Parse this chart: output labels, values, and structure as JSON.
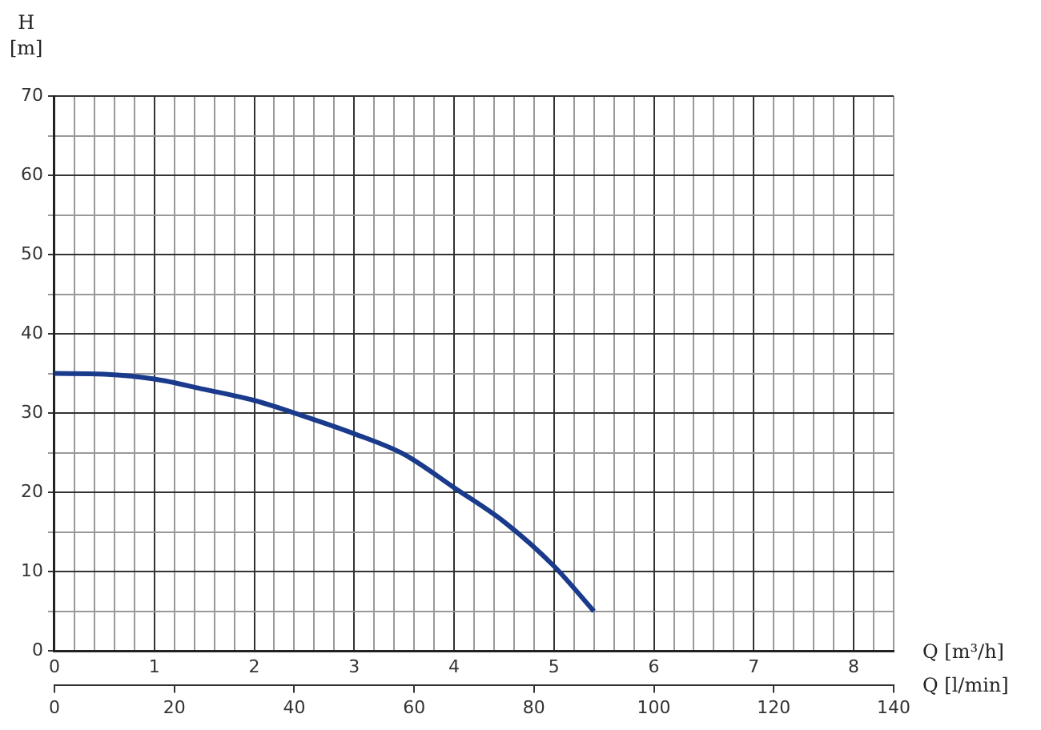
{
  "chart_data": {
    "type": "line",
    "xlabel": "Q [m³/h]",
    "x2label": "Q [l/min]",
    "ylabel": "H [m]",
    "xlim": [
      0,
      8.4
    ],
    "xticks": [
      0,
      {
        "value": 0.2,
        "label": null
      },
      {
        "value": 0.4,
        "label": null
      },
      {
        "value": 0.6,
        "label": null
      },
      {
        "value": 0.8,
        "label": null
      },
      1,
      {
        "value": 1.2,
        "label": null
      },
      {
        "value": 1.4,
        "label": null
      },
      {
        "value": 1.6,
        "label": null
      },
      {
        "value": 1.8,
        "label": null
      },
      2,
      {
        "value": 2.2,
        "label": null
      },
      {
        "value": 2.4,
        "label": null
      },
      {
        "value": 2.6,
        "label": null
      },
      {
        "value": 2.8,
        "label": null
      },
      3,
      {
        "value": 3.2,
        "label": null
      },
      {
        "value": 3.4,
        "label": null
      },
      {
        "value": 3.6,
        "label": null
      },
      {
        "value": 3.8,
        "label": null
      },
      4,
      {
        "value": 4.2,
        "label": null
      },
      {
        "value": 4.4,
        "label": null
      },
      {
        "value": 4.6,
        "label": null
      },
      {
        "value": 4.8,
        "label": null
      },
      5,
      {
        "value": 5.2,
        "label": null
      },
      {
        "value": 5.4,
        "label": null
      },
      {
        "value": 5.6,
        "label": null
      },
      {
        "value": 5.8,
        "label": null
      },
      6,
      {
        "value": 6.2,
        "label": null
      },
      {
        "value": 6.4,
        "label": null
      },
      {
        "value": 6.6,
        "label": null
      },
      {
        "value": 6.8,
        "label": null
      },
      7,
      {
        "value": 7.2,
        "label": null
      },
      {
        "value": 7.4,
        "label": null
      },
      {
        "value": 7.6,
        "label": null
      },
      {
        "value": 7.8,
        "label": null
      },
      8,
      {
        "value": 8.2,
        "label": null
      },
      {
        "value": 8.4,
        "label": null
      }
    ],
    "x2lim": [
      0,
      140
    ],
    "x2ticks": [
      0,
      20,
      40,
      60,
      80,
      100,
      120,
      140
    ],
    "ylim": [
      0,
      70
    ],
    "yticks": [
      0,
      {
        "value": 5,
        "label": null
      },
      10,
      {
        "value": 15,
        "label": null
      },
      20,
      {
        "value": 25,
        "label": null
      },
      30,
      {
        "value": 35,
        "label": null
      },
      40,
      {
        "value": 45,
        "label": null
      },
      50,
      {
        "value": 55,
        "label": null
      },
      60,
      {
        "value": 65,
        "label": null
      },
      70
    ],
    "grid": true,
    "legend": false,
    "marker": "none",
    "line_style": "solid",
    "series": [
      {
        "color": "#1a3a8c",
        "x": [
          0,
          0.5,
          1,
          1.5,
          2,
          2.5,
          3,
          3.5,
          4,
          4.5,
          5,
          5.4
        ],
        "values": [
          35,
          34.9,
          34.3,
          33,
          31.6,
          29.6,
          27.4,
          24.8,
          20.6,
          16.3,
          10.7,
          5
        ]
      }
    ]
  }
}
